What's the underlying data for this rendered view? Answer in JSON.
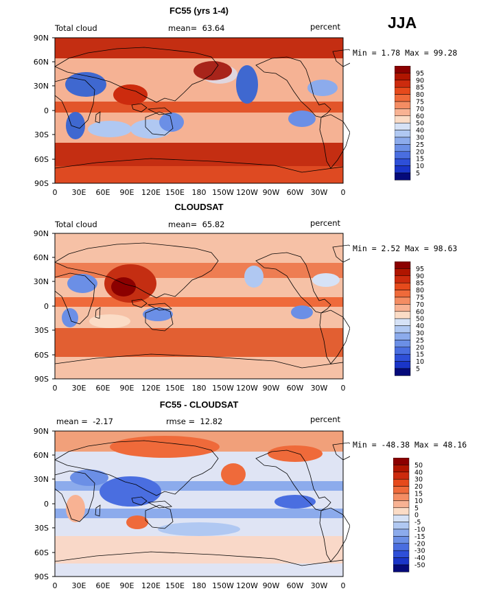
{
  "season": "JJA",
  "ticks": {
    "lat": [
      "90N",
      "60N",
      "30N",
      "0",
      "30S",
      "60S",
      "90S"
    ],
    "lon": [
      "0",
      "30E",
      "60E",
      "90E",
      "120E",
      "150E",
      "180",
      "150W",
      "120W",
      "90W",
      "60W",
      "30W",
      "0"
    ]
  },
  "panels": [
    {
      "title": "FC55 (yrs 1-4)",
      "left_label": "Total cloud",
      "center_label": "mean=",
      "center_value": "63.64",
      "right_label": "percent",
      "minmax": "Min =   1.78 Max =  99.28",
      "colorbar": {
        "levels": [
          "95",
          "90",
          "85",
          "80",
          "75",
          "70",
          "60",
          "50",
          "40",
          "30",
          "25",
          "20",
          "15",
          "10",
          "5"
        ],
        "colors": [
          "#8b0000",
          "#b01500",
          "#cc2b0e",
          "#e64a1c",
          "#ef6a3a",
          "#f48d63",
          "#f8b293",
          "#fbdcc6",
          "#d6e2f6",
          "#b0c8f2",
          "#8cabec",
          "#6b8fe6",
          "#4a6ee0",
          "#2e4fd8",
          "#1a35c8",
          "#050a7a"
        ]
      }
    },
    {
      "title": "CLOUDSAT",
      "left_label": "Total cloud",
      "center_label": "mean=",
      "center_value": "65.82",
      "right_label": "percent",
      "minmax": "Min =   2.52 Max =  98.63",
      "colorbar": {
        "levels": [
          "95",
          "90",
          "85",
          "80",
          "75",
          "70",
          "60",
          "50",
          "40",
          "30",
          "25",
          "20",
          "15",
          "10",
          "5"
        ],
        "colors": [
          "#8b0000",
          "#b01500",
          "#cc2b0e",
          "#e64a1c",
          "#ef6a3a",
          "#f48d63",
          "#f8b293",
          "#fbdcc6",
          "#d6e2f6",
          "#b0c8f2",
          "#8cabec",
          "#6b8fe6",
          "#4a6ee0",
          "#2e4fd8",
          "#1a35c8",
          "#050a7a"
        ]
      }
    },
    {
      "title": "FC55 - CLOUDSAT",
      "left_label": "mean =",
      "left_value": "-2.17",
      "center_label": "rmse =",
      "center_value": "12.82",
      "right_label": "percent",
      "minmax": "Min = -48.38 Max =  48.16",
      "colorbar": {
        "levels": [
          "50",
          "40",
          "30",
          "20",
          "15",
          "10",
          "5",
          "0",
          "-5",
          "-10",
          "-15",
          "-20",
          "-30",
          "-40",
          "-50"
        ],
        "colors": [
          "#8b0000",
          "#b01500",
          "#cc2b0e",
          "#e64a1c",
          "#ef6a3a",
          "#f48d63",
          "#f8b293",
          "#fbdcc6",
          "#d6e2f6",
          "#b0c8f2",
          "#8cabec",
          "#6b8fe6",
          "#4a6ee0",
          "#2e4fd8",
          "#1a35c8",
          "#050a7a"
        ]
      }
    }
  ]
}
